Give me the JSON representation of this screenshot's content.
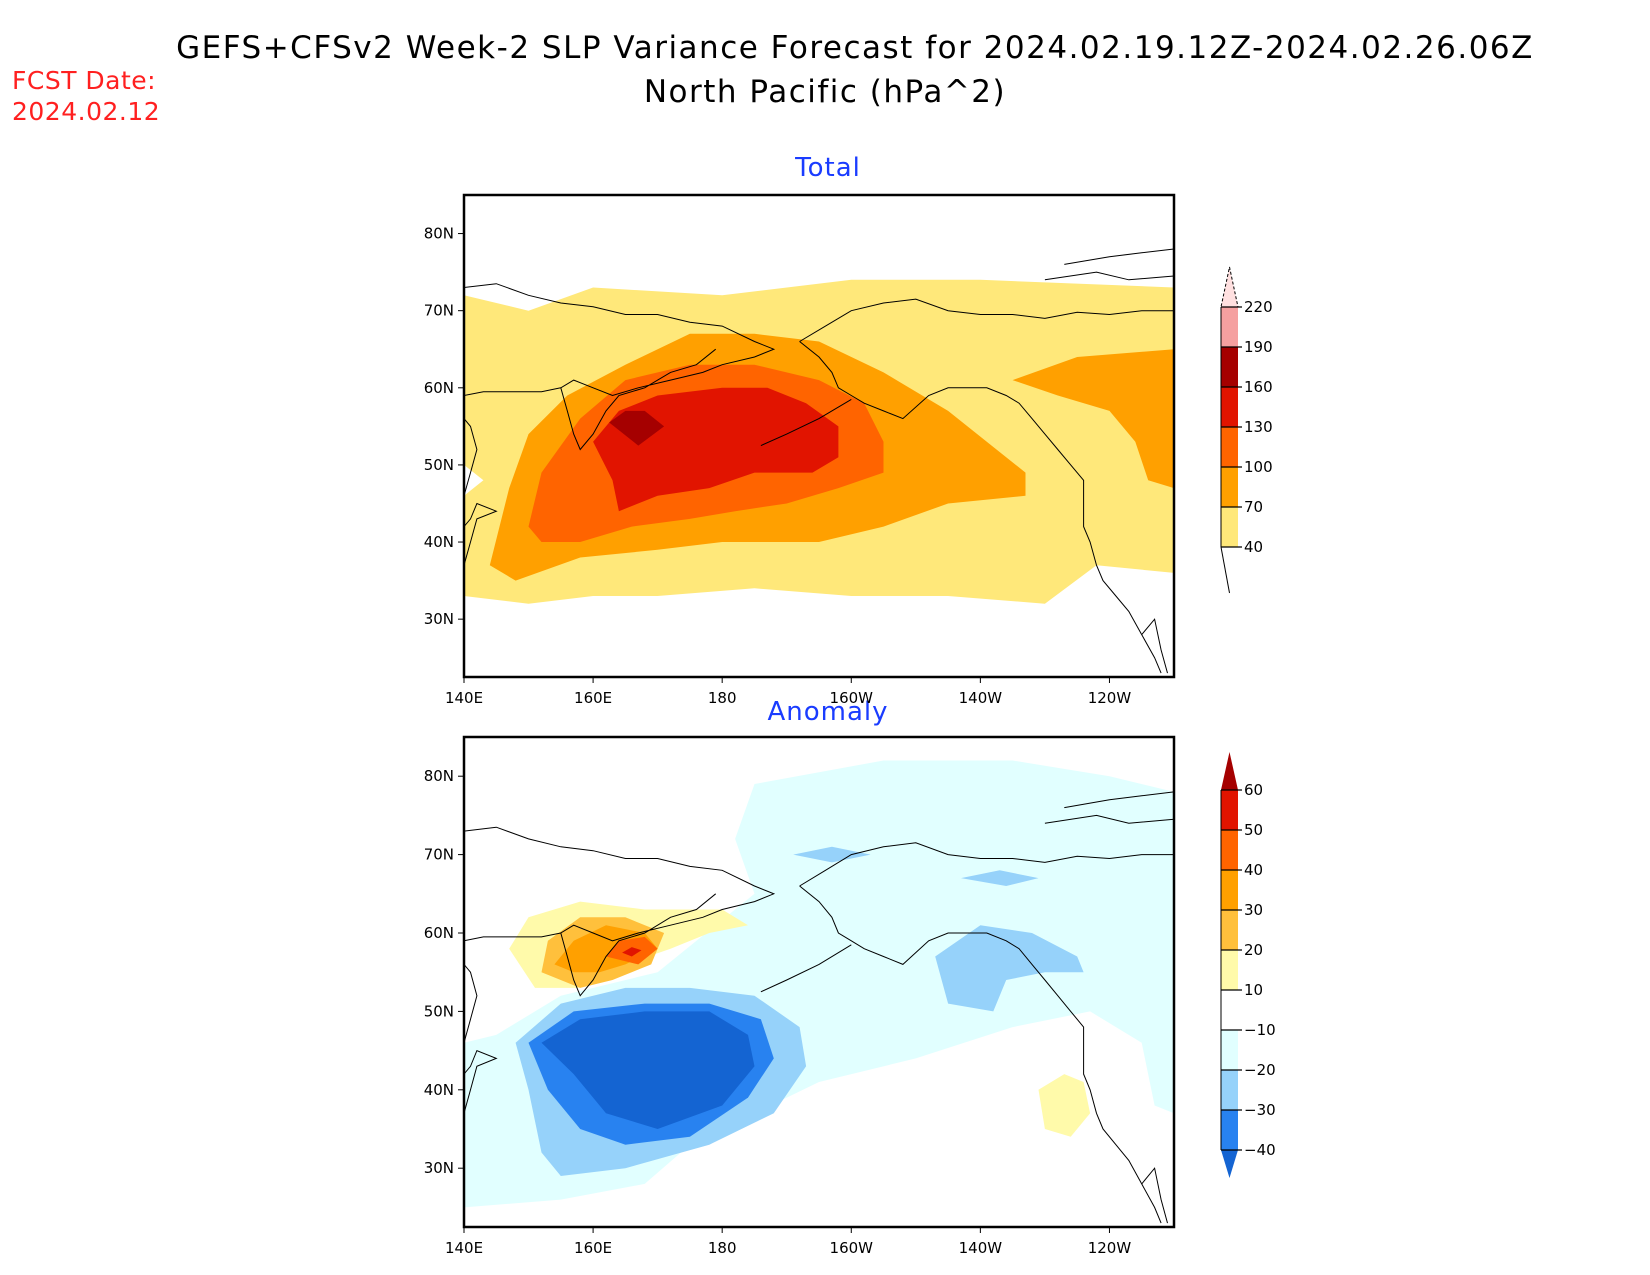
{
  "header": {
    "title_line1": "GEFS+CFSv2 Week-2 SLP Variance Forecast for 2024.02.19.12Z-2024.02.26.06Z",
    "title_line2": "North Pacific (hPa^2)",
    "fcst_label": "FCST Date:",
    "fcst_date": "2024.02.12",
    "fcst_color": "#ff2020",
    "panel_title_color": "#1a3cff"
  },
  "chart_data": [
    {
      "type": "heatmap",
      "title": "Total",
      "xlabel": "",
      "ylabel": "",
      "x_range_deg_east": [
        140,
        250
      ],
      "y_range_deg_north": [
        22.5,
        85
      ],
      "x_ticks": [
        {
          "value": 140,
          "label": "140E"
        },
        {
          "value": 160,
          "label": "160E"
        },
        {
          "value": 180,
          "label": "180"
        },
        {
          "value": 200,
          "label": "160W"
        },
        {
          "value": 220,
          "label": "140W"
        },
        {
          "value": 240,
          "label": "120W"
        }
      ],
      "y_ticks": [
        {
          "value": 30,
          "label": "30N"
        },
        {
          "value": 40,
          "label": "40N"
        },
        {
          "value": 50,
          "label": "50N"
        },
        {
          "value": 60,
          "label": "60N"
        },
        {
          "value": 70,
          "label": "70N"
        },
        {
          "value": 80,
          "label": "80N"
        }
      ],
      "colorbar": {
        "levels": [
          40,
          70,
          100,
          130,
          160,
          190,
          220
        ],
        "labels": [
          "40",
          "70",
          "100",
          "130",
          "160",
          "190",
          "220"
        ],
        "colors": [
          "#ffe87a",
          "#ffa000",
          "#ff6400",
          "#e11400",
          "#a50000",
          "#f5a0a0",
          "#ffe0e0"
        ],
        "extend": "both",
        "below_color": "#ffffff"
      },
      "regions": [
        {
          "level_index": 0,
          "points": [
            [
              140,
              72
            ],
            [
              150,
              70
            ],
            [
              160,
              73
            ],
            [
              180,
              72
            ],
            [
              200,
              74
            ],
            [
              220,
              74
            ],
            [
              250,
              73
            ],
            [
              250,
              36
            ],
            [
              238,
              37
            ],
            [
              230,
              32
            ],
            [
              215,
              33
            ],
            [
              200,
              33
            ],
            [
              185,
              34
            ],
            [
              170,
              33
            ],
            [
              160,
              33
            ],
            [
              150,
              32
            ],
            [
              140,
              33
            ],
            [
              140,
              46
            ],
            [
              143,
              48
            ],
            [
              140,
              50
            ]
          ]
        },
        {
          "level_index": 1,
          "points": [
            [
              144,
              37
            ],
            [
              147,
              47
            ],
            [
              150,
              54
            ],
            [
              156,
              59
            ],
            [
              165,
              63
            ],
            [
              175,
              67
            ],
            [
              185,
              67
            ],
            [
              195,
              66
            ],
            [
              205,
              62
            ],
            [
              215,
              57
            ],
            [
              227,
              49
            ],
            [
              227,
              46
            ],
            [
              215,
              45
            ],
            [
              205,
              42
            ],
            [
              195,
              40
            ],
            [
              180,
              40
            ],
            [
              170,
              39
            ],
            [
              158,
              38
            ],
            [
              148,
              35
            ]
          ]
        },
        {
          "level_index": 1,
          "points": [
            [
              225,
              61
            ],
            [
              235,
              64
            ],
            [
              250,
              65
            ],
            [
              250,
              47
            ],
            [
              246,
              48
            ],
            [
              244,
              53
            ],
            [
              240,
              57
            ],
            [
              232,
              59
            ]
          ]
        },
        {
          "level_index": 2,
          "points": [
            [
              150,
              42
            ],
            [
              152,
              49
            ],
            [
              158,
              56
            ],
            [
              165,
              61
            ],
            [
              175,
              63
            ],
            [
              185,
              63
            ],
            [
              195,
              61
            ],
            [
              202,
              58
            ],
            [
              205,
              53
            ],
            [
              205,
              49
            ],
            [
              198,
              47
            ],
            [
              190,
              45
            ],
            [
              182,
              44
            ],
            [
              175,
              43
            ],
            [
              166,
              42
            ],
            [
              158,
              40
            ],
            [
              152,
              40
            ]
          ]
        },
        {
          "level_index": 3,
          "points": [
            [
              160,
              53
            ],
            [
              164,
              57
            ],
            [
              170,
              59
            ],
            [
              180,
              60
            ],
            [
              187,
              60
            ],
            [
              193,
              58
            ],
            [
              198,
              55
            ],
            [
              198,
              51
            ],
            [
              194,
              49
            ],
            [
              185,
              49
            ],
            [
              178,
              47
            ],
            [
              170,
              46
            ],
            [
              164,
              44
            ],
            [
              163,
              48
            ]
          ]
        },
        {
          "level_index": 4,
          "points": [
            [
              162.5,
              55.5
            ],
            [
              165,
              57
            ],
            [
              168,
              57
            ],
            [
              171,
              55
            ],
            [
              167,
              52.5
            ]
          ]
        }
      ]
    },
    {
      "type": "heatmap",
      "title": "Anomaly",
      "xlabel": "",
      "ylabel": "",
      "x_range_deg_east": [
        140,
        250
      ],
      "y_range_deg_north": [
        22.5,
        85
      ],
      "x_ticks": [
        {
          "value": 140,
          "label": "140E"
        },
        {
          "value": 160,
          "label": "160E"
        },
        {
          "value": 180,
          "label": "180"
        },
        {
          "value": 200,
          "label": "160W"
        },
        {
          "value": 220,
          "label": "140W"
        },
        {
          "value": 240,
          "label": "120W"
        }
      ],
      "y_ticks": [
        {
          "value": 30,
          "label": "30N"
        },
        {
          "value": 40,
          "label": "40N"
        },
        {
          "value": 50,
          "label": "50N"
        },
        {
          "value": 60,
          "label": "60N"
        },
        {
          "value": 70,
          "label": "70N"
        },
        {
          "value": 80,
          "label": "80N"
        }
      ],
      "colorbar": {
        "levels": [
          -40,
          -30,
          -20,
          -10,
          10,
          20,
          30,
          40,
          50,
          60
        ],
        "labels": [
          "-40",
          "-30",
          "-20",
          "-10",
          "10",
          "20",
          "30",
          "40",
          "50",
          "60"
        ],
        "colors": [
          "#1464d2",
          "#2882f0",
          "#96d2fa",
          "#e1ffff",
          "#ffffff",
          "#fffaaa",
          "#ffc03c",
          "#ffa000",
          "#ff6400",
          "#e11400",
          "#a50000"
        ],
        "extend": "both"
      },
      "regions": [
        {
          "level_index": 3,
          "points": [
            [
              140,
              25
            ],
            [
              155,
              26
            ],
            [
              168,
              28
            ],
            [
              175,
              33
            ],
            [
              185,
              37
            ],
            [
              195,
              41
            ],
            [
              210,
              44
            ],
            [
              225,
              48
            ],
            [
              237,
              50
            ],
            [
              245,
              46
            ],
            [
              247,
              38
            ],
            [
              250,
              37
            ],
            [
              250,
              78
            ],
            [
              240,
              80
            ],
            [
              225,
              82
            ],
            [
              205,
              82
            ],
            [
              185,
              79
            ],
            [
              182,
              72
            ],
            [
              185,
              65
            ],
            [
              170,
              55
            ],
            [
              155,
              52
            ],
            [
              145,
              47
            ],
            [
              140,
              46
            ]
          ]
        },
        {
          "level_index": 2,
          "points": [
            [
              148,
              46
            ],
            [
              155,
              51
            ],
            [
              165,
              53
            ],
            [
              175,
              53
            ],
            [
              185,
              52
            ],
            [
              192,
              48
            ],
            [
              193,
              43
            ],
            [
              188,
              37
            ],
            [
              178,
              33
            ],
            [
              165,
              30
            ],
            [
              155,
              29
            ],
            [
              152,
              32
            ],
            [
              150,
              40
            ]
          ]
        },
        {
          "level_index": 2,
          "points": [
            [
              213,
              57
            ],
            [
              220,
              61
            ],
            [
              228,
              60
            ],
            [
              235,
              57
            ],
            [
              236,
              55
            ],
            [
              230,
              55
            ],
            [
              224,
              54
            ],
            [
              222,
              50
            ],
            [
              215,
              51
            ]
          ]
        },
        {
          "level_index": 2,
          "points": [
            [
              191,
              70
            ],
            [
              197,
              71
            ],
            [
              203,
              70
            ],
            [
              197,
              69
            ]
          ]
        },
        {
          "level_index": 2,
          "points": [
            [
              217,
              67
            ],
            [
              223,
              68
            ],
            [
              229,
              67
            ],
            [
              224,
              66
            ]
          ]
        },
        {
          "level_index": 1,
          "points": [
            [
              150,
              46
            ],
            [
              157,
              50
            ],
            [
              168,
              51
            ],
            [
              178,
              51
            ],
            [
              186,
              49
            ],
            [
              188,
              44
            ],
            [
              184,
              39
            ],
            [
              175,
              34
            ],
            [
              165,
              33
            ],
            [
              158,
              35
            ],
            [
              153,
              40
            ]
          ]
        },
        {
          "level_index": 0,
          "points": [
            [
              152,
              46
            ],
            [
              158,
              49
            ],
            [
              168,
              50
            ],
            [
              178,
              50
            ],
            [
              184,
              47
            ],
            [
              185,
              43
            ],
            [
              180,
              38
            ],
            [
              170,
              35
            ],
            [
              162,
              37
            ],
            [
              157,
              42
            ]
          ]
        },
        {
          "level_index": 5,
          "points": [
            [
              147,
              58
            ],
            [
              150,
              62
            ],
            [
              158,
              64
            ],
            [
              168,
              63
            ],
            [
              180,
              63
            ],
            [
              184,
              61
            ],
            [
              178,
              60
            ],
            [
              172,
              58
            ],
            [
              165,
              56
            ],
            [
              158,
              53
            ],
            [
              151,
              53
            ]
          ]
        },
        {
          "level_index": 5,
          "points": [
            [
              229,
              40
            ],
            [
              233,
              42
            ],
            [
              236,
              41
            ],
            [
              237,
              37
            ],
            [
              234,
              34
            ],
            [
              230,
              35
            ]
          ]
        },
        {
          "level_index": 6,
          "points": [
            [
              152,
              55
            ],
            [
              153,
              59
            ],
            [
              158,
              62
            ],
            [
              165,
              62
            ],
            [
              171,
              60
            ],
            [
              169,
              56
            ],
            [
              163,
              54
            ],
            [
              158,
              53
            ]
          ]
        },
        {
          "level_index": 7,
          "points": [
            [
              154,
              56
            ],
            [
              157,
              59
            ],
            [
              162,
              61
            ],
            [
              168,
              60
            ],
            [
              170,
              58
            ],
            [
              165,
              56
            ],
            [
              161,
              55
            ],
            [
              157,
              55
            ]
          ]
        },
        {
          "level_index": 8,
          "points": [
            [
              162,
              57
            ],
            [
              164,
              59
            ],
            [
              168,
              59.5
            ],
            [
              170,
              58
            ],
            [
              167,
              56
            ]
          ]
        },
        {
          "level_index": 9,
          "points": [
            [
              164.5,
              57.5
            ],
            [
              166,
              58.2
            ],
            [
              167.5,
              57.8
            ],
            [
              166,
              57
            ]
          ]
        }
      ]
    }
  ]
}
